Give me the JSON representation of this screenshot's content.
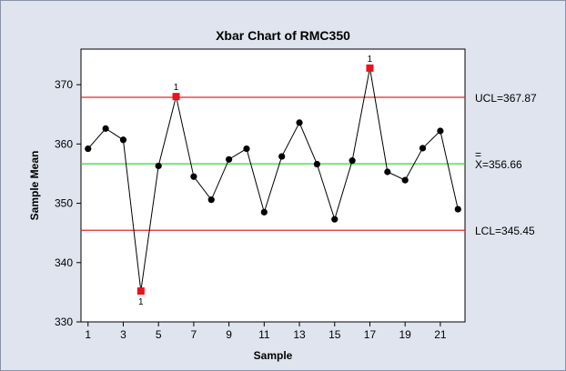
{
  "chart_data": {
    "type": "line",
    "title": "Xbar Chart of RMC350",
    "xlabel": "Sample",
    "ylabel": "Sample Mean",
    "xlim": [
      0.6,
      22.4
    ],
    "ylim": [
      330,
      376
    ],
    "x_ticks": [
      1,
      3,
      5,
      7,
      9,
      11,
      13,
      15,
      17,
      19,
      21
    ],
    "y_ticks": [
      330,
      340,
      350,
      360,
      370
    ],
    "series": [
      {
        "x": [
          1,
          2,
          3,
          4,
          5,
          6,
          7,
          8,
          9,
          10,
          11,
          12,
          13,
          14,
          15,
          16,
          17,
          18,
          19,
          20,
          21,
          22
        ],
        "values": [
          359.2,
          362.6,
          360.7,
          335.2,
          356.3,
          368.0,
          354.5,
          350.6,
          357.4,
          359.2,
          348.5,
          357.9,
          363.6,
          356.6,
          347.3,
          357.2,
          372.8,
          355.3,
          353.9,
          359.3,
          362.2,
          349.0
        ]
      }
    ],
    "flagged_points": [
      {
        "x": 4,
        "label": "1"
      },
      {
        "x": 6,
        "label": "1"
      },
      {
        "x": 17,
        "label": "1"
      }
    ],
    "limits": [
      {
        "name": "UCL",
        "value": 367.87,
        "label": "UCL=367.87",
        "color": "#e8242a"
      },
      {
        "name": "Center",
        "value": 356.66,
        "label_bar": "=",
        "label": "X=356.66",
        "color": "#36d43e"
      },
      {
        "name": "LCL",
        "value": 345.45,
        "label": "LCL=345.45",
        "color": "#e8242a"
      }
    ],
    "colors": {
      "series": "#000000",
      "flagged": "#e8141a",
      "background": "#dfe4ee",
      "plot_area": "#ffffff"
    },
    "grid": false,
    "legend": "none"
  }
}
